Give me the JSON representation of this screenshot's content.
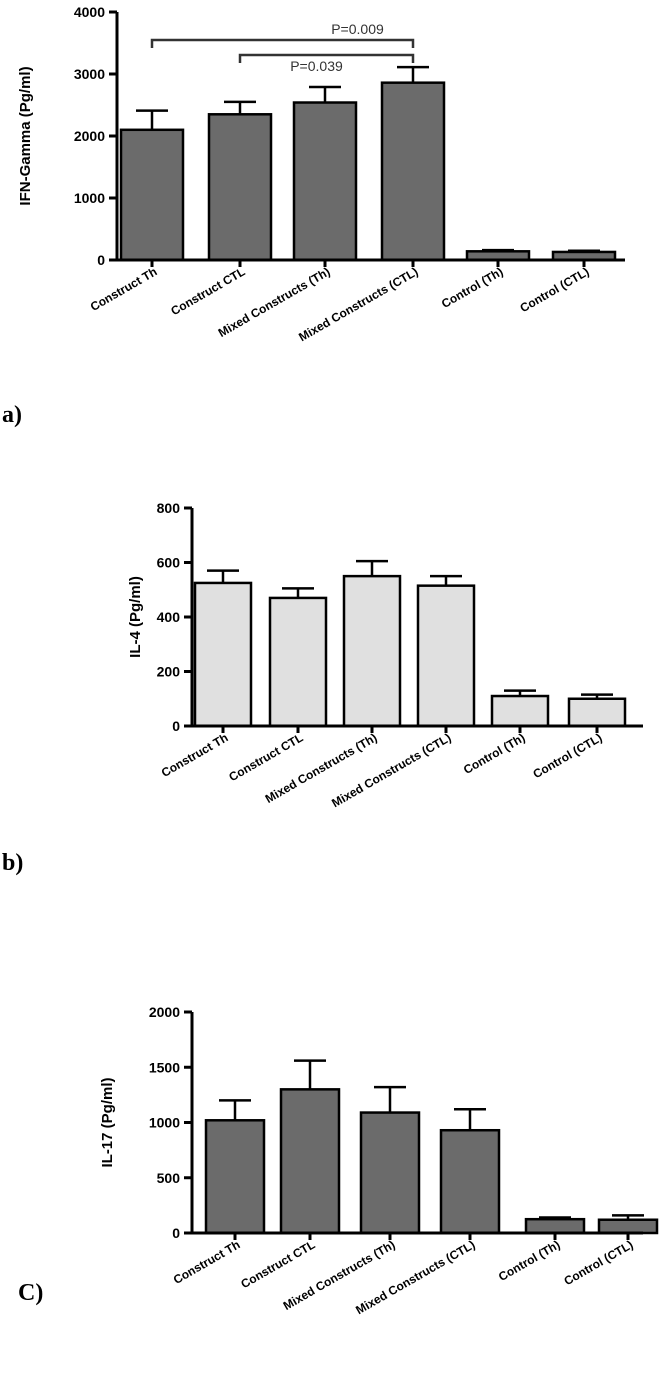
{
  "chart_data": [
    {
      "type": "bar",
      "panel_label": "a)",
      "ylabel": "IFN-Gamma (Pg/ml)",
      "ylim": [
        0,
        4000
      ],
      "yticks": [
        "0",
        "1000",
        "2000",
        "3000",
        "4000"
      ],
      "categories": [
        "Construct Th",
        "Construct CTL",
        "Mixed Constructs (Th)",
        "Mixed Constructs (CTL)",
        "Control (Th)",
        "Control (CTL)"
      ],
      "values": [
        2100,
        2350,
        2540,
        2860,
        140,
        130
      ],
      "errors": [
        310,
        200,
        250,
        250,
        20,
        20
      ],
      "bar_color": "#6b6b6b",
      "significance": [
        {
          "from": 0,
          "to": 3,
          "label": "P=0.009"
        },
        {
          "from": 1,
          "to": 3,
          "label": "P=0.039"
        }
      ]
    },
    {
      "type": "bar",
      "panel_label": "b)",
      "ylabel": "IL-4 (Pg/ml)",
      "ylim": [
        0,
        800
      ],
      "yticks": [
        "0",
        "200",
        "400",
        "600",
        "800"
      ],
      "categories": [
        "Construct Th",
        "Construct CTL",
        "Mixed Constructs (Th)",
        "Mixed Constructs (CTL)",
        "Control (Th)",
        "Control (CTL)"
      ],
      "values": [
        525,
        470,
        550,
        515,
        110,
        100
      ],
      "errors": [
        45,
        35,
        55,
        35,
        20,
        15
      ],
      "bar_color": "#e0e0e0",
      "significance": []
    },
    {
      "type": "bar",
      "panel_label": "C)",
      "ylabel": "IL-17 (Pg/ml)",
      "ylim": [
        0,
        2000
      ],
      "yticks": [
        "0",
        "500",
        "1000",
        "1500",
        "2000"
      ],
      "categories": [
        "Construct Th",
        "Construct CTL",
        "Mixed Constructs (Th)",
        "Mixed Constructs (CTL)",
        "Control (Th)",
        "Control (CTL)"
      ],
      "values": [
        1020,
        1300,
        1090,
        930,
        125,
        120
      ],
      "errors": [
        180,
        260,
        230,
        190,
        15,
        40
      ],
      "bar_color": "#6b6b6b",
      "significance": []
    }
  ]
}
